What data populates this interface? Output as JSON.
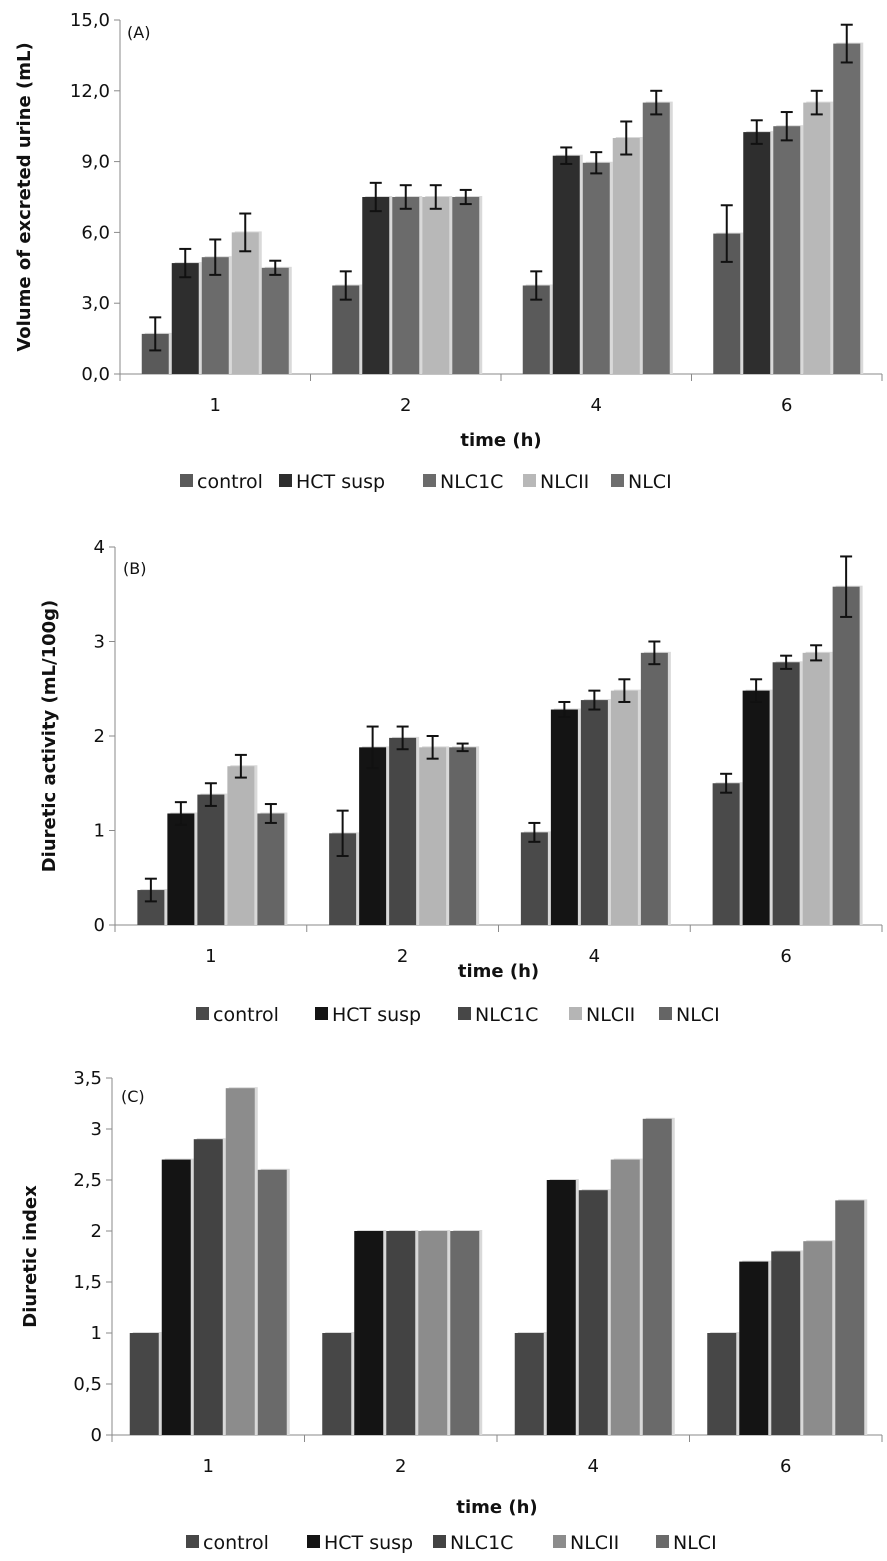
{
  "chart_data": [
    {
      "type": "bar",
      "panel_label": "(A)",
      "categories": [
        "1",
        "2",
        "4",
        "6"
      ],
      "xlabel": "time (h)",
      "ylabel": "Volume of excreted urine (mL)",
      "ylim": [
        0,
        15
      ],
      "yticks": [
        "0,0",
        "3,0",
        "6,0",
        "9,0",
        "12,0",
        "15,0"
      ],
      "error_bars": true,
      "legend_position": "bottom",
      "series": [
        {
          "name": "control",
          "color": "#5a5a5a",
          "values": [
            1.7,
            3.75,
            3.75,
            5.95
          ],
          "errors": [
            0.7,
            0.6,
            0.6,
            1.2
          ]
        },
        {
          "name": "HCT susp",
          "color": "#2e2e2e",
          "values": [
            4.7,
            7.5,
            9.25,
            10.25
          ],
          "errors": [
            0.6,
            0.6,
            0.35,
            0.5
          ]
        },
        {
          "name": "NLC1C",
          "color": "#6b6b6b",
          "values": [
            4.95,
            7.5,
            8.95,
            10.5
          ],
          "errors": [
            0.75,
            0.5,
            0.45,
            0.6
          ]
        },
        {
          "name": "NLCII",
          "color": "#b8b8b8",
          "values": [
            6.0,
            7.5,
            10.0,
            11.5
          ],
          "errors": [
            0.8,
            0.5,
            0.7,
            0.5
          ]
        },
        {
          "name": "NLCI",
          "color": "#6e6e6e",
          "values": [
            4.5,
            7.5,
            11.5,
            14.0
          ],
          "errors": [
            0.3,
            0.3,
            0.5,
            0.8
          ]
        }
      ]
    },
    {
      "type": "bar",
      "panel_label": "(B)",
      "categories": [
        "1",
        "2",
        "4",
        "6"
      ],
      "xlabel": "time (h)",
      "ylabel": "Diuretic activity (mL/100g)",
      "ylim": [
        0,
        4
      ],
      "yticks": [
        "0",
        "1",
        "2",
        "3",
        "4"
      ],
      "error_bars": true,
      "legend_position": "bottom",
      "series": [
        {
          "name": "control",
          "color": "#4a4a4a",
          "values": [
            0.37,
            0.97,
            0.98,
            1.5
          ],
          "errors": [
            0.12,
            0.24,
            0.1,
            0.1
          ]
        },
        {
          "name": "HCT susp",
          "color": "#141414",
          "values": [
            1.18,
            1.88,
            2.28,
            2.48
          ],
          "errors": [
            0.12,
            0.22,
            0.08,
            0.12
          ]
        },
        {
          "name": "NLC1C",
          "color": "#474747",
          "values": [
            1.38,
            1.98,
            2.38,
            2.78
          ],
          "errors": [
            0.12,
            0.12,
            0.1,
            0.07
          ]
        },
        {
          "name": "NLCII",
          "color": "#b5b5b5",
          "values": [
            1.68,
            1.88,
            2.48,
            2.88
          ],
          "errors": [
            0.12,
            0.12,
            0.12,
            0.08
          ]
        },
        {
          "name": "NLCI",
          "color": "#656565",
          "values": [
            1.18,
            1.88,
            2.88,
            3.58
          ],
          "errors": [
            0.1,
            0.04,
            0.12,
            0.32
          ]
        }
      ]
    },
    {
      "type": "bar",
      "panel_label": "(C)",
      "categories": [
        "1",
        "2",
        "4",
        "6"
      ],
      "xlabel": "time (h)",
      "ylabel": "Diuretic index",
      "ylim": [
        0,
        3.5
      ],
      "yticks": [
        "0",
        "0,5",
        "1",
        "1,5",
        "2",
        "2,5",
        "3",
        "3,5"
      ],
      "error_bars": false,
      "legend_position": "bottom",
      "series": [
        {
          "name": "control",
          "color": "#474747",
          "values": [
            1.0,
            1.0,
            1.0,
            1.0
          ]
        },
        {
          "name": "HCT susp",
          "color": "#141414",
          "values": [
            2.7,
            2.0,
            2.5,
            1.7
          ]
        },
        {
          "name": "NLC1C",
          "color": "#434343",
          "values": [
            2.9,
            2.0,
            2.4,
            1.8
          ]
        },
        {
          "name": "NLCII",
          "color": "#8c8c8c",
          "values": [
            3.4,
            2.0,
            2.7,
            1.9
          ]
        },
        {
          "name": "NLCI",
          "color": "#6a6a6a",
          "values": [
            2.6,
            2.0,
            3.1,
            2.3
          ]
        }
      ]
    }
  ]
}
